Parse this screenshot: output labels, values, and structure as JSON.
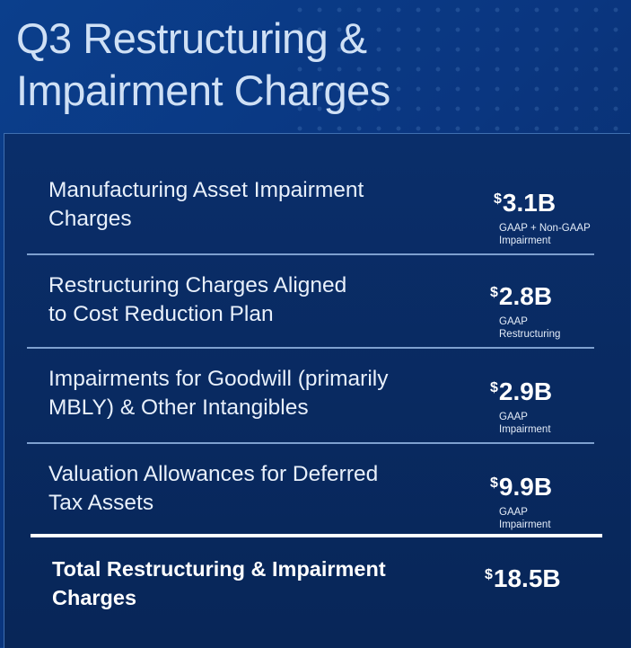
{
  "title_line1": "Q3 Restructuring &",
  "title_line2": "Impairment Charges",
  "currency_symbol": "$",
  "items": [
    {
      "label_line1": "Manufacturing Asset Impairment",
      "label_line2": "Charges",
      "amount": "3.1B",
      "sub_line1": "GAAP + Non-GAAP",
      "sub_line2": "Impairment"
    },
    {
      "label_line1": "Restructuring Charges Aligned",
      "label_line2": "to Cost Reduction Plan",
      "amount": "2.8B",
      "sub_line1": "GAAP",
      "sub_line2": "Restructuring"
    },
    {
      "label_line1": "Impairments for Goodwill (primarily",
      "label_line2": "MBLY) & Other Intangibles",
      "amount": "2.9B",
      "sub_line1": "GAAP",
      "sub_line2": "Impairment"
    },
    {
      "label_line1": "Valuation Allowances for Deferred",
      "label_line2": "Tax Assets",
      "amount": "9.9B",
      "sub_line1": "GAAP",
      "sub_line2": "Impairment"
    }
  ],
  "total": {
    "label_line1": "Total Restructuring & Impairment",
    "label_line2": "Charges",
    "amount": "18.5B"
  },
  "colors": {
    "background": "#0a3680",
    "panel": "#082658",
    "divider": "#7ea0cf"
  }
}
